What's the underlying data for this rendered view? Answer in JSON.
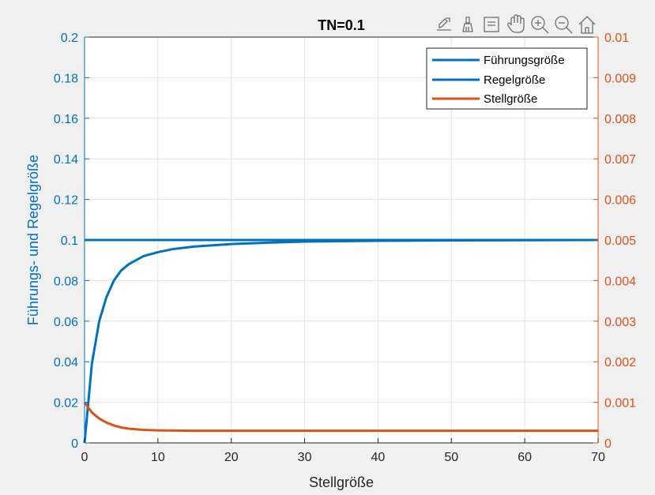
{
  "toolbar": {
    "icons": [
      "export-icon",
      "brush-icon",
      "datatip-icon",
      "pan-icon",
      "zoom-in-icon",
      "zoom-out-icon",
      "home-icon"
    ]
  },
  "colors": {
    "left_axis": "#0072bd",
    "right_axis": "#d95319",
    "background": "#f0f0f0",
    "plot_bg": "#ffffff",
    "grid": "#dfe4ea"
  },
  "chart_data": {
    "type": "line",
    "title": "TN=0.1",
    "xlabel": "Stellgröße",
    "ylabel_left": "Führungs- und Regelgröße",
    "ylabel_right": "",
    "xlim": [
      0,
      70
    ],
    "ylim_left": [
      0,
      0.2
    ],
    "ylim_right": [
      0,
      0.01
    ],
    "x_ticks": [
      "0",
      "10",
      "20",
      "30",
      "40",
      "50",
      "60",
      "70"
    ],
    "y_ticks_left": [
      "0",
      "0.02",
      "0.04",
      "0.06",
      "0.08",
      "0.1",
      "0.12",
      "0.14",
      "0.16",
      "0.18",
      "0.2"
    ],
    "y_ticks_right": [
      "0",
      "0.001",
      "0.002",
      "0.003",
      "0.004",
      "0.005",
      "0.006",
      "0.007",
      "0.008",
      "0.009",
      "0.01"
    ],
    "grid": true,
    "legend": {
      "placement": "top-right",
      "entries": [
        "Führungsgröße",
        "Regelgröße",
        "Stellgröße"
      ]
    },
    "series": [
      {
        "name": "Führungsgröße",
        "axis": "left",
        "color": "#0072bd",
        "x": [
          0,
          70
        ],
        "y": [
          0.1,
          0.1
        ]
      },
      {
        "name": "Regelgröße",
        "axis": "left",
        "color": "#0072bd",
        "x": [
          0,
          1,
          2,
          3,
          4,
          5,
          6,
          8,
          10,
          12,
          15,
          20,
          25,
          30,
          40,
          50,
          60,
          70
        ],
        "y": [
          0,
          0.039,
          0.06,
          0.072,
          0.08,
          0.085,
          0.088,
          0.092,
          0.094,
          0.0955,
          0.0968,
          0.098,
          0.0987,
          0.0992,
          0.0996,
          0.0998,
          0.0999,
          0.1
        ]
      },
      {
        "name": "Stellgröße",
        "axis": "right",
        "color": "#d95319",
        "x": [
          0,
          1,
          2,
          3,
          4,
          5,
          6,
          8,
          10,
          15,
          20,
          30,
          40,
          50,
          60,
          70
        ],
        "y": [
          0.001,
          0.00075,
          0.0006,
          0.0005,
          0.00043,
          0.00038,
          0.00035,
          0.00032,
          0.00031,
          0.0003,
          0.0003,
          0.0003,
          0.0003,
          0.0003,
          0.0003,
          0.0003
        ]
      }
    ]
  }
}
